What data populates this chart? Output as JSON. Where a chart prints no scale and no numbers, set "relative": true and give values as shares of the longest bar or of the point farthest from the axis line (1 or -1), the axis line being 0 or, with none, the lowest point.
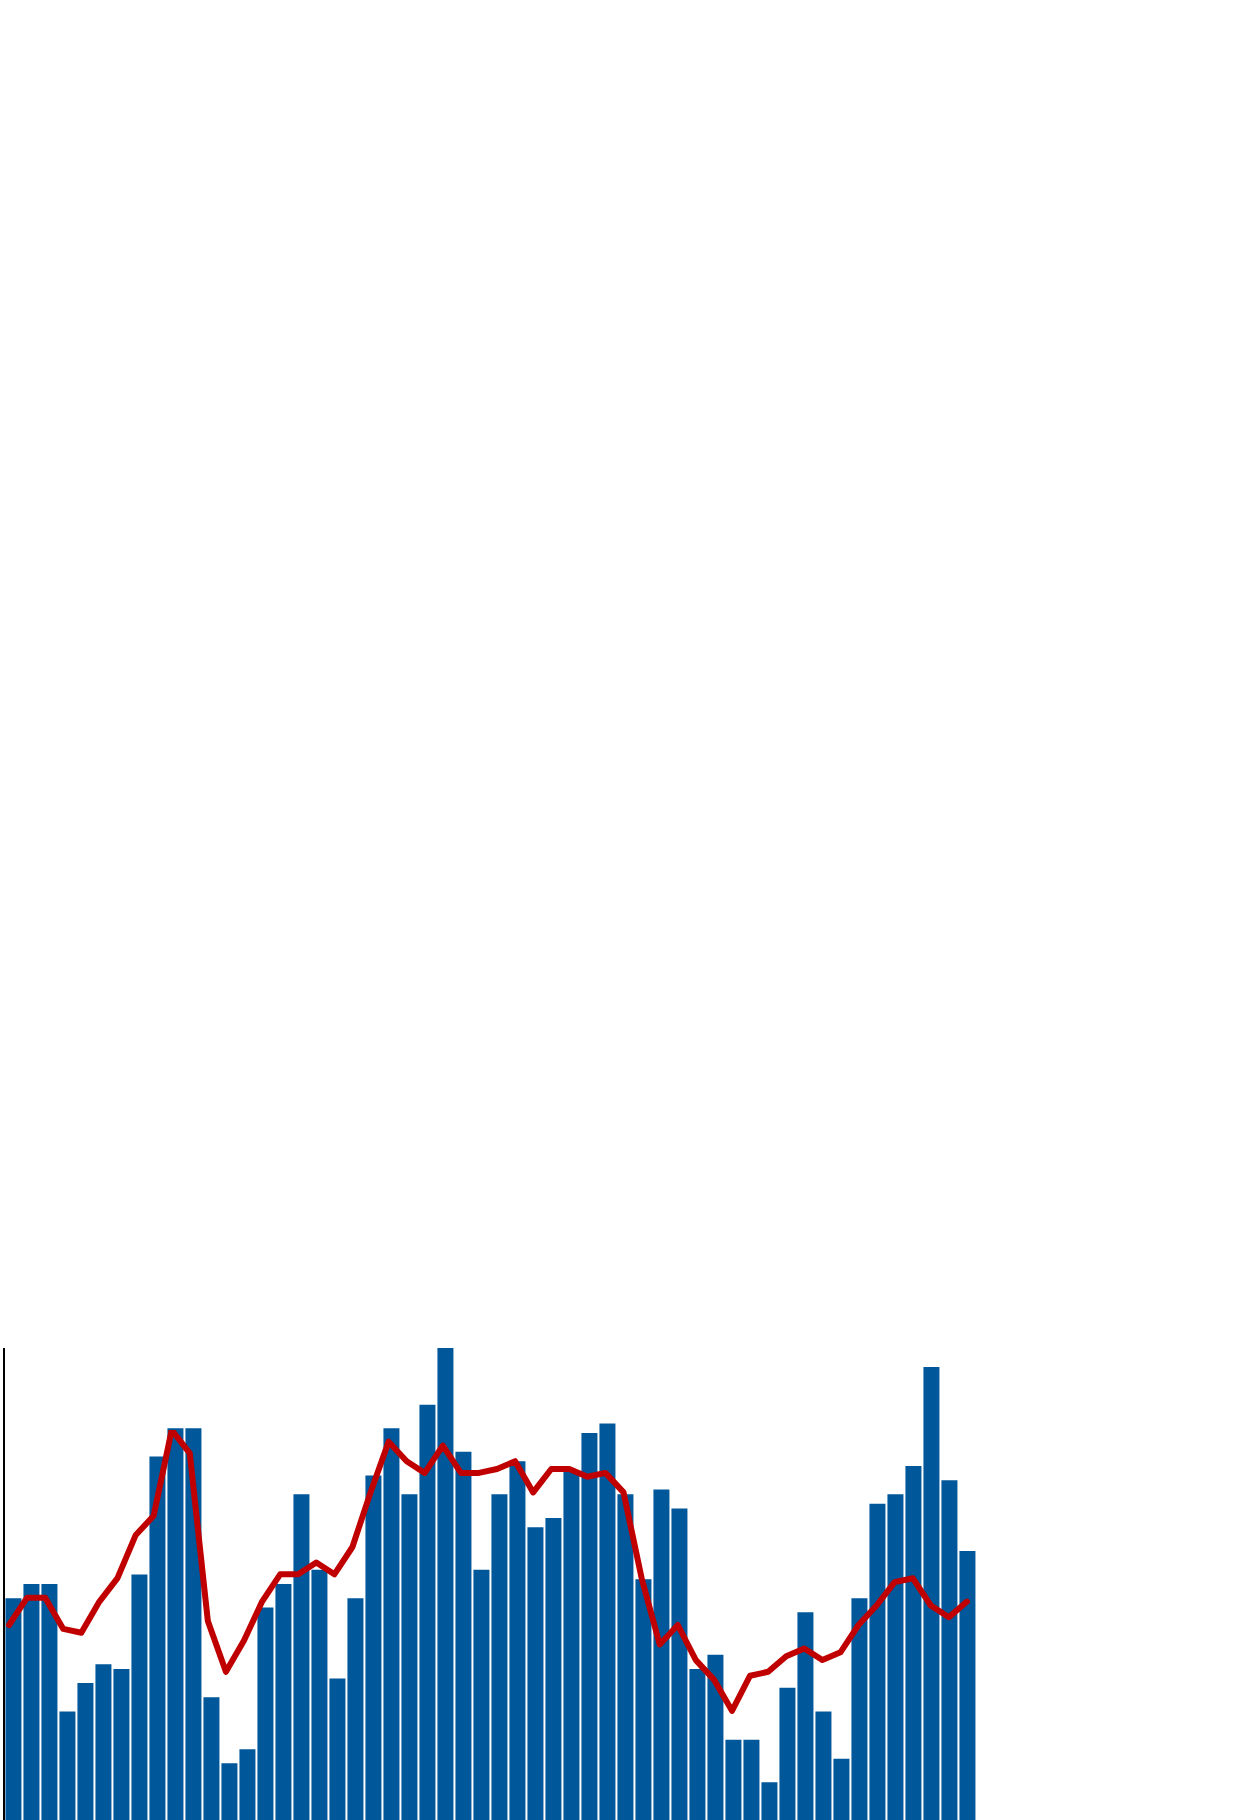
{
  "chart_data": [
    {
      "type": "bar",
      "relative": true,
      "categories": [
        null,
        null,
        null,
        null,
        null,
        null,
        null,
        null,
        null,
        null,
        null,
        null,
        null,
        null,
        null,
        null,
        null,
        null,
        null,
        null,
        null,
        null,
        null,
        null,
        null,
        null,
        null,
        null,
        null,
        null,
        null,
        null,
        null,
        null,
        null,
        null,
        null,
        null,
        null,
        null,
        null,
        null,
        null,
        null,
        null,
        null,
        null,
        null,
        null,
        null,
        null,
        null,
        null,
        null
      ],
      "color": "#00579a",
      "values": [
        0.47,
        0.5,
        0.5,
        0.23,
        0.29,
        0.33,
        0.32,
        0.52,
        0.77,
        0.83,
        0.83,
        0.26,
        0.12,
        0.15,
        0.45,
        0.5,
        0.69,
        0.53,
        0.3,
        0.47,
        0.73,
        0.83,
        0.69,
        0.88,
        1,
        0.78,
        0.53,
        0.69,
        0.76,
        0.62,
        0.64,
        0.74,
        0.82,
        0.84,
        0.69,
        0.51,
        0.7,
        0.66,
        0.32,
        0.35,
        0.17,
        0.17,
        0.08,
        0.28,
        0.44,
        0.23,
        0.13,
        0.47,
        0.67,
        0.69,
        0.75,
        0.96,
        0.72,
        0.57
      ]
    },
    {
      "type": "line",
      "relative": true,
      "categories": [
        null,
        null,
        null,
        null,
        null,
        null,
        null,
        null,
        null,
        null,
        null,
        null,
        null,
        null,
        null,
        null,
        null,
        null,
        null,
        null,
        null,
        null,
        null,
        null,
        null,
        null,
        null,
        null,
        null,
        null,
        null,
        null,
        null,
        null,
        null,
        null,
        null,
        null,
        null,
        null,
        null,
        null,
        null,
        null,
        null,
        null,
        null,
        null,
        null,
        null,
        null,
        null,
        null,
        null
      ],
      "color": "#c00000",
      "values": [
        0.5,
        0.57,
        0.57,
        0.49,
        0.48,
        0.56,
        0.62,
        0.73,
        0.78,
        1,
        0.94,
        0.51,
        0.38,
        0.46,
        0.56,
        0.63,
        0.63,
        0.66,
        0.63,
        0.7,
        0.84,
        0.97,
        0.92,
        0.89,
        0.96,
        0.89,
        0.89,
        0.9,
        0.92,
        0.84,
        0.9,
        0.9,
        0.88,
        0.89,
        0.84,
        0.62,
        0.45,
        0.5,
        0.41,
        0.36,
        0.28,
        0.37,
        0.38,
        0.42,
        0.44,
        0.41,
        0.43,
        0.5,
        0.55,
        0.61,
        0.62,
        0.55,
        0.52,
        0.56
      ]
    }
  ]
}
